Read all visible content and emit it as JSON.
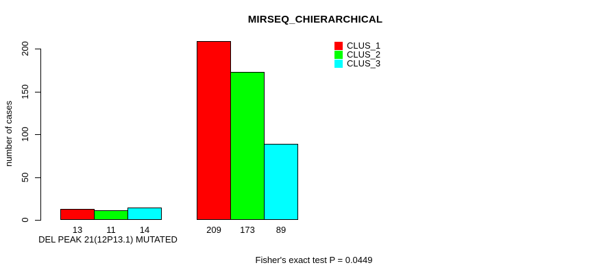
{
  "chart_data": {
    "type": "bar",
    "title": "MIRSEQ_CHIERARCHICAL",
    "ylabel": "number of cases",
    "xlabel": "DEL PEAK 21(12P13.1) MUTATED",
    "footer": "Fisher's exact test P = 0.0449",
    "ylim": [
      0,
      200
    ],
    "yticks": [
      0,
      50,
      100,
      150,
      200
    ],
    "categories": [
      "DEL PEAK 21(12P13.1) MUTATED",
      ""
    ],
    "series": [
      {
        "name": "CLUS_1",
        "color": "#ff0000",
        "values": [
          13,
          209
        ]
      },
      {
        "name": "CLUS_2",
        "color": "#00ff00",
        "values": [
          11,
          173
        ]
      },
      {
        "name": "CLUS_3",
        "color": "#00ffff",
        "values": [
          14,
          89
        ]
      }
    ],
    "grid": false,
    "legend_position": "top-right",
    "background": "#ffffff"
  }
}
